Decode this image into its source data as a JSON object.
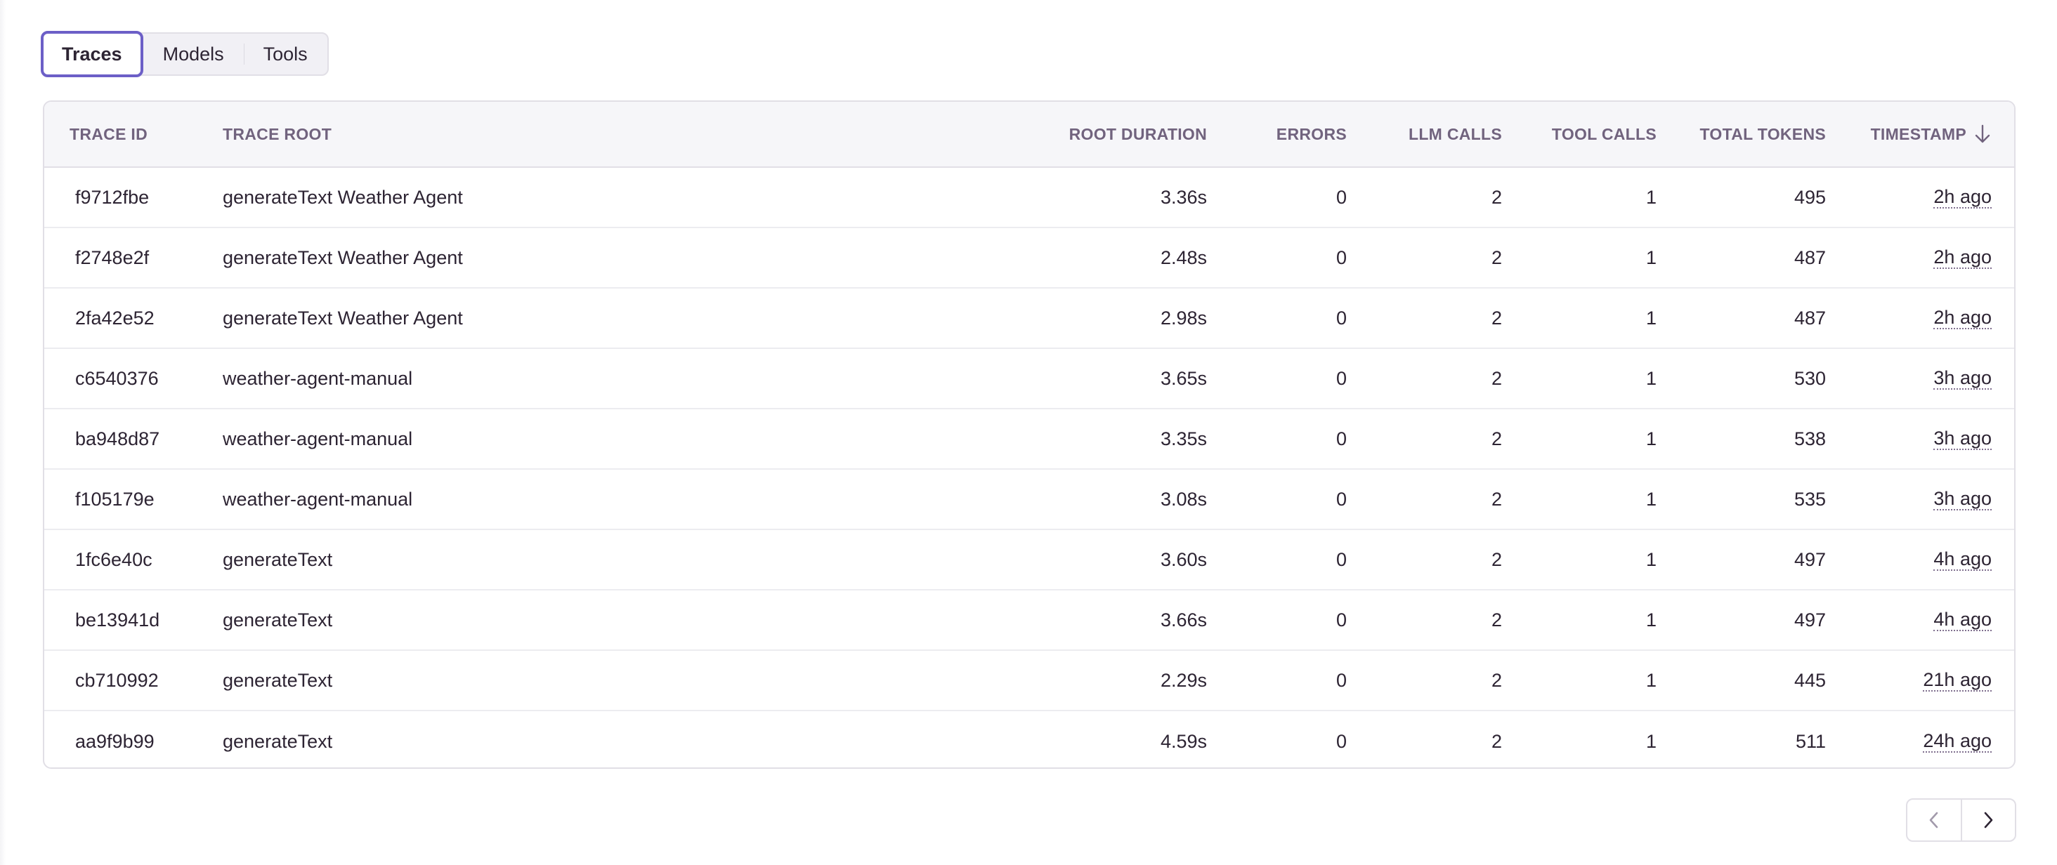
{
  "tabs": [
    {
      "label": "Traces",
      "active": true
    },
    {
      "label": "Models",
      "active": false
    },
    {
      "label": "Tools",
      "active": false
    }
  ],
  "table": {
    "columns": [
      "TRACE ID",
      "TRACE ROOT",
      "ROOT DURATION",
      "ERRORS",
      "LLM CALLS",
      "TOOL CALLS",
      "TOTAL TOKENS",
      "TIMESTAMP"
    ],
    "sort": {
      "column": "TIMESTAMP",
      "direction": "descending",
      "icon": "arrow-down-icon"
    },
    "rows": [
      {
        "id": "f9712fbe",
        "root": "generateText Weather Agent",
        "duration": "3.36s",
        "errors": "0",
        "llm": "2",
        "tool": "1",
        "tokens": "495",
        "ts": "2h ago"
      },
      {
        "id": "f2748e2f",
        "root": "generateText Weather Agent",
        "duration": "2.48s",
        "errors": "0",
        "llm": "2",
        "tool": "1",
        "tokens": "487",
        "ts": "2h ago"
      },
      {
        "id": "2fa42e52",
        "root": "generateText Weather Agent",
        "duration": "2.98s",
        "errors": "0",
        "llm": "2",
        "tool": "1",
        "tokens": "487",
        "ts": "2h ago"
      },
      {
        "id": "c6540376",
        "root": "weather-agent-manual",
        "duration": "3.65s",
        "errors": "0",
        "llm": "2",
        "tool": "1",
        "tokens": "530",
        "ts": "3h ago"
      },
      {
        "id": "ba948d87",
        "root": "weather-agent-manual",
        "duration": "3.35s",
        "errors": "0",
        "llm": "2",
        "tool": "1",
        "tokens": "538",
        "ts": "3h ago"
      },
      {
        "id": "f105179e",
        "root": "weather-agent-manual",
        "duration": "3.08s",
        "errors": "0",
        "llm": "2",
        "tool": "1",
        "tokens": "535",
        "ts": "3h ago"
      },
      {
        "id": "1fc6e40c",
        "root": "generateText",
        "duration": "3.60s",
        "errors": "0",
        "llm": "2",
        "tool": "1",
        "tokens": "497",
        "ts": "4h ago"
      },
      {
        "id": "be13941d",
        "root": "generateText",
        "duration": "3.66s",
        "errors": "0",
        "llm": "2",
        "tool": "1",
        "tokens": "497",
        "ts": "4h ago"
      },
      {
        "id": "cb710992",
        "root": "generateText",
        "duration": "2.29s",
        "errors": "0",
        "llm": "2",
        "tool": "1",
        "tokens": "445",
        "ts": "21h ago"
      },
      {
        "id": "aa9f9b99",
        "root": "generateText",
        "duration": "4.59s",
        "errors": "0",
        "llm": "2",
        "tool": "1",
        "tokens": "511",
        "ts": "24h ago"
      }
    ]
  },
  "pagination": {
    "prev_icon": "chevron-left-icon",
    "next_icon": "chevron-right-icon",
    "prev_disabled": true
  },
  "colors": {
    "accent": "#6c5fc7",
    "link": "#2562d4",
    "text": "#2d2433",
    "header_text": "#71637e"
  }
}
